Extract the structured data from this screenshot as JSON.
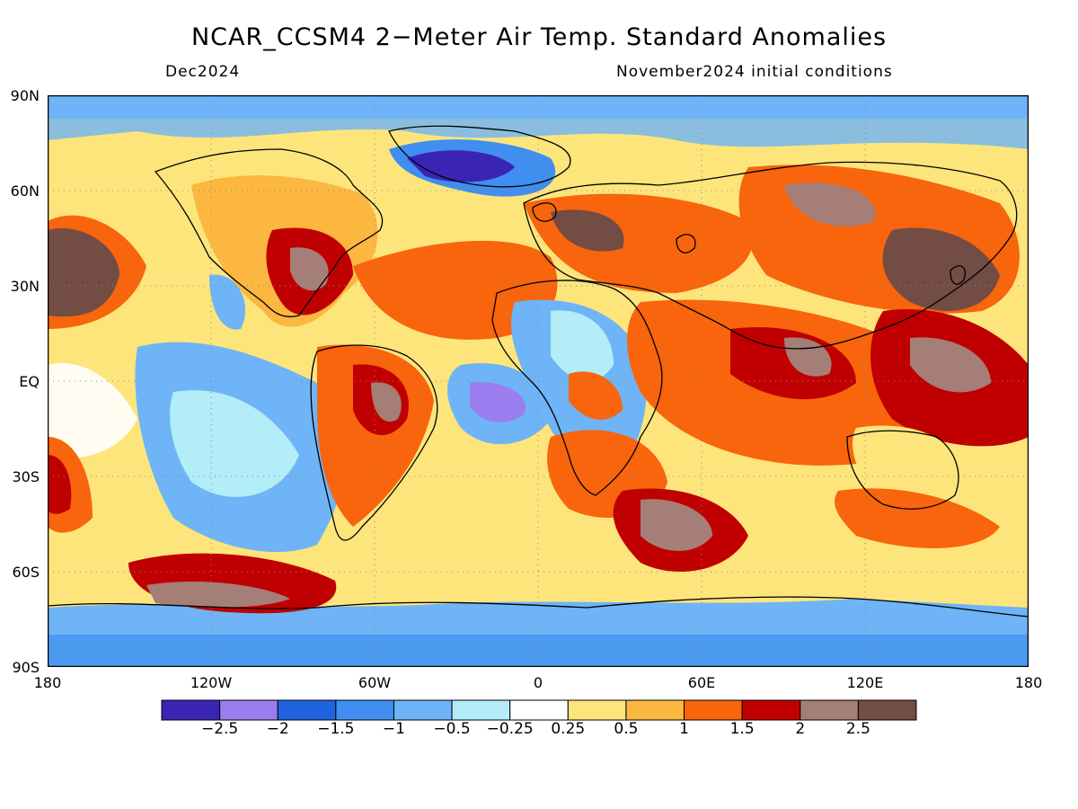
{
  "title": "NCAR_CCSM4 2−Meter Air Temp. Standard Anomalies",
  "subtitle_left": "Dec2024",
  "subtitle_right": "November2024 initial conditions",
  "y_ticks": [
    "90N",
    "60N",
    "30N",
    "EQ",
    "30S",
    "60S",
    "90S"
  ],
  "x_ticks": [
    "180",
    "120W",
    "60W",
    "0",
    "60E",
    "120E",
    "180"
  ],
  "colorbar": {
    "colors": [
      "#3a24b4",
      "#9a7ef0",
      "#1f63e0",
      "#3f8ef0",
      "#6eb4f6",
      "#b2edf8",
      "#ffffff",
      "#fde57c",
      "#fbb740",
      "#f8650c",
      "#c00000",
      "#a57e78",
      "#734c44"
    ],
    "labels": [
      "−2.5",
      "−2",
      "−1.5",
      "−1",
      "−0.5",
      "−0.25",
      "0.25",
      "0.5",
      "1",
      "1.5",
      "2",
      "2.5"
    ]
  }
}
